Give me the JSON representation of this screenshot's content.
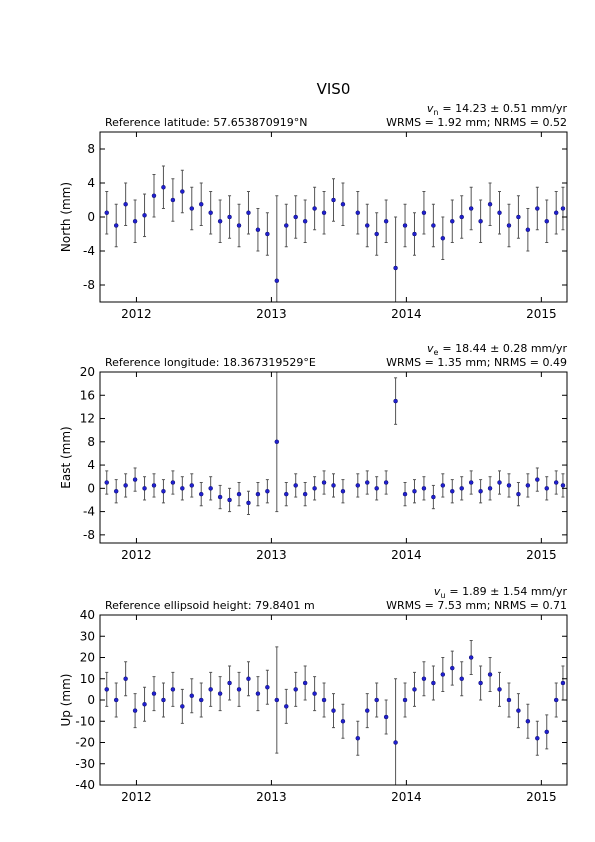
{
  "chart_data": [
    {
      "type": "errorbar",
      "title": "VIS0",
      "ylabel": "North (mm)",
      "annotation_left": "Reference latitude: 57.653870919°N",
      "velocity": {
        "symbol": "v",
        "subscript": "n",
        "text": "= 14.23 ± 0.51 mm/yr"
      },
      "stats": "WRMS = 1.92 mm; NRMS = 0.52",
      "xlim": [
        2011.73,
        2015.19
      ],
      "xticks": [
        2012,
        2013,
        2014,
        2015
      ],
      "ylim": [
        -10,
        10
      ],
      "yticks": [
        -8,
        -4,
        0,
        4,
        8
      ],
      "point_color": "#2020d0",
      "error_color": "#555555",
      "x": [
        2011.78,
        2011.85,
        2011.92,
        2011.99,
        2012.06,
        2012.13,
        2012.2,
        2012.27,
        2012.34,
        2012.41,
        2012.48,
        2012.55,
        2012.62,
        2012.69,
        2012.76,
        2012.83,
        2012.9,
        2012.97,
        2013.04,
        2013.11,
        2013.18,
        2013.25,
        2013.32,
        2013.39,
        2013.46,
        2013.53,
        2013.64,
        2013.71,
        2013.78,
        2013.85,
        2013.92,
        2013.99,
        2014.06,
        2014.13,
        2014.2,
        2014.27,
        2014.34,
        2014.41,
        2014.48,
        2014.55,
        2014.62,
        2014.69,
        2014.76,
        2014.83,
        2014.9,
        2014.97,
        2015.04,
        2015.11,
        2015.16
      ],
      "values": [
        0.5,
        -1,
        1.5,
        -0.5,
        0.2,
        2.5,
        3.5,
        2,
        3,
        1,
        1.5,
        0.5,
        -0.5,
        0,
        -1,
        0.5,
        -1.5,
        -2,
        -7.5,
        -1,
        0,
        -0.5,
        1,
        0.5,
        2,
        1.5,
        0.5,
        -1,
        -2,
        -0.5,
        -6,
        -1,
        -2,
        0.5,
        -1,
        -2.5,
        -0.5,
        0,
        1,
        -0.5,
        1.5,
        0.5,
        -1,
        0,
        -1.5,
        1,
        -0.5,
        0.5,
        1
      ],
      "errors": [
        2.5,
        2.5,
        2.5,
        2.5,
        2.5,
        2.5,
        2.5,
        2.5,
        2.5,
        2.5,
        2.5,
        2.5,
        2.5,
        2.5,
        2.5,
        2.5,
        2.5,
        2.5,
        10,
        2.5,
        2.5,
        2.5,
        2.5,
        2.5,
        2.5,
        2.5,
        2.5,
        2.5,
        2.5,
        2.5,
        6,
        2.5,
        2.5,
        2.5,
        2.5,
        2.5,
        2.5,
        2.5,
        2.5,
        2.5,
        2.5,
        2.5,
        2.5,
        2.5,
        2.5,
        2.5,
        2.5,
        2.5,
        2.5
      ]
    },
    {
      "type": "errorbar",
      "ylabel": "East (mm)",
      "annotation_left": "Reference longitude: 18.367319529°E",
      "velocity": {
        "symbol": "v",
        "subscript": "e",
        "text": "= 18.44 ± 0.28 mm/yr"
      },
      "stats": "WRMS = 1.35 mm; NRMS = 0.49",
      "xlim": [
        2011.73,
        2015.19
      ],
      "xticks": [
        2012,
        2013,
        2014,
        2015
      ],
      "ylim": [
        -9.4,
        20
      ],
      "yticks": [
        -8,
        -4,
        0,
        4,
        8,
        12,
        16,
        20
      ],
      "point_color": "#2020d0",
      "error_color": "#555555",
      "x": [
        2011.78,
        2011.85,
        2011.92,
        2011.99,
        2012.06,
        2012.13,
        2012.2,
        2012.27,
        2012.34,
        2012.41,
        2012.48,
        2012.55,
        2012.62,
        2012.69,
        2012.76,
        2012.83,
        2012.9,
        2012.97,
        2013.04,
        2013.11,
        2013.18,
        2013.25,
        2013.32,
        2013.39,
        2013.46,
        2013.53,
        2013.64,
        2013.71,
        2013.78,
        2013.85,
        2013.92,
        2013.99,
        2014.06,
        2014.13,
        2014.2,
        2014.27,
        2014.34,
        2014.41,
        2014.48,
        2014.55,
        2014.62,
        2014.69,
        2014.76,
        2014.83,
        2014.9,
        2014.97,
        2015.04,
        2015.11,
        2015.16
      ],
      "values": [
        1,
        -0.5,
        0.5,
        1.5,
        0,
        0.5,
        -0.5,
        1,
        0,
        0.5,
        -1,
        0,
        -1.5,
        -2,
        -1,
        -2.5,
        -1,
        -0.5,
        8,
        -1,
        0.5,
        -1,
        0,
        1,
        0.5,
        -0.5,
        0.5,
        1,
        0,
        1,
        15,
        -1,
        -0.5,
        0,
        -1.5,
        0.5,
        -0.5,
        0,
        1,
        -0.5,
        0,
        1,
        0.5,
        -1,
        0.5,
        1.5,
        0,
        1,
        0.5
      ],
      "errors": [
        2,
        2,
        2,
        2,
        2,
        2,
        2,
        2,
        2,
        2,
        2,
        2,
        2,
        2,
        2,
        2,
        2,
        2,
        12,
        2,
        2,
        2,
        2,
        2,
        2,
        2,
        2,
        2,
        2,
        2,
        4,
        2,
        2,
        2,
        2,
        2,
        2,
        2,
        2,
        2,
        2,
        2,
        2,
        2,
        2,
        2,
        2,
        2,
        2
      ]
    },
    {
      "type": "errorbar",
      "ylabel": "Up (mm)",
      "annotation_left": "Reference ellipsoid height: 79.8401 m",
      "velocity": {
        "symbol": "v",
        "subscript": "u",
        "text": "= 1.89 ± 1.54 mm/yr"
      },
      "stats": "WRMS = 7.53 mm; NRMS = 0.71",
      "xlim": [
        2011.73,
        2015.19
      ],
      "xticks": [
        2012,
        2013,
        2014,
        2015
      ],
      "ylim": [
        -40,
        40
      ],
      "yticks": [
        -40,
        -30,
        -20,
        -10,
        0,
        10,
        20,
        30,
        40
      ],
      "point_color": "#2020d0",
      "error_color": "#555555",
      "x": [
        2011.78,
        2011.85,
        2011.92,
        2011.99,
        2012.06,
        2012.13,
        2012.2,
        2012.27,
        2012.34,
        2012.41,
        2012.48,
        2012.55,
        2012.62,
        2012.69,
        2012.76,
        2012.83,
        2012.9,
        2012.97,
        2013.04,
        2013.11,
        2013.18,
        2013.25,
        2013.32,
        2013.39,
        2013.46,
        2013.53,
        2013.64,
        2013.71,
        2013.78,
        2013.85,
        2013.92,
        2013.99,
        2014.06,
        2014.13,
        2014.2,
        2014.27,
        2014.34,
        2014.41,
        2014.48,
        2014.55,
        2014.62,
        2014.69,
        2014.76,
        2014.83,
        2014.9,
        2014.97,
        2015.04,
        2015.11,
        2015.16
      ],
      "values": [
        5,
        0,
        10,
        -5,
        -2,
        3,
        0,
        5,
        -3,
        2,
        0,
        5,
        3,
        8,
        5,
        10,
        3,
        6,
        0,
        -3,
        5,
        8,
        3,
        0,
        -5,
        -10,
        -18,
        -5,
        0,
        -8,
        -20,
        0,
        5,
        10,
        8,
        12,
        15,
        10,
        20,
        8,
        12,
        5,
        0,
        -5,
        -10,
        -18,
        -15,
        0,
        8
      ],
      "errors": [
        8,
        8,
        8,
        8,
        8,
        8,
        8,
        8,
        8,
        8,
        8,
        8,
        8,
        8,
        8,
        8,
        8,
        8,
        25,
        8,
        8,
        8,
        8,
        8,
        8,
        8,
        8,
        8,
        8,
        8,
        30,
        8,
        8,
        8,
        8,
        8,
        8,
        8,
        8,
        8,
        8,
        8,
        8,
        8,
        8,
        8,
        8,
        8,
        8
      ]
    }
  ]
}
